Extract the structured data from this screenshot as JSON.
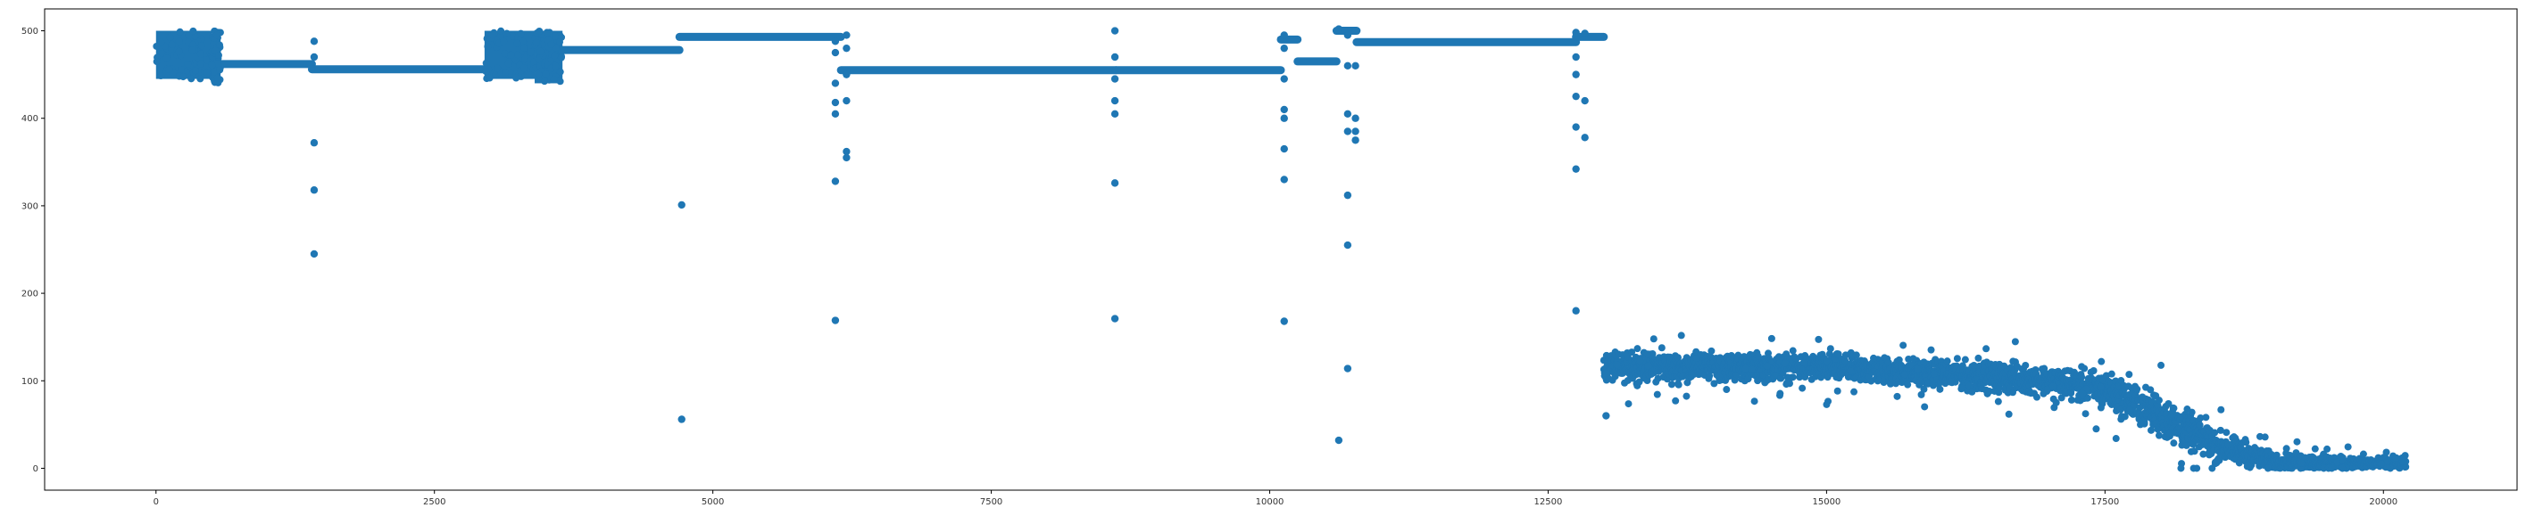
{
  "chart_data": {
    "type": "scatter",
    "title": "",
    "xlabel": "",
    "ylabel": "",
    "xlim": [
      -1000,
      21200
    ],
    "ylim": [
      -25,
      525
    ],
    "x_ticks": [
      0,
      2500,
      5000,
      7500,
      10000,
      12500,
      15000,
      17500,
      20000
    ],
    "y_ticks": [
      0,
      100,
      200,
      300,
      400,
      500
    ],
    "grid": false,
    "legend": "none",
    "series": [
      {
        "color": "#1f77b4",
        "plateaus": [
          {
            "x": [
              580,
              1400
            ],
            "y": 462
          },
          {
            "x": [
              1400,
              2980
            ],
            "y": 456
          },
          {
            "x": [
              3650,
              4700
            ],
            "y": 478
          },
          {
            "x": [
              4700,
              6150
            ],
            "y": 493
          },
          {
            "x": [
              6150,
              8620
            ],
            "y": 455
          },
          {
            "x": [
              8620,
              10100
            ],
            "y": 455
          },
          {
            "x": [
              10100,
              10250
            ],
            "y": 490
          },
          {
            "x": [
              10250,
              10600
            ],
            "y": 465
          },
          {
            "x": [
              10600,
              10780
            ],
            "y": 500
          },
          {
            "x": [
              10780,
              12750
            ],
            "y": 487
          },
          {
            "x": [
              12750,
              13000
            ],
            "y": 493
          }
        ],
        "dense_bands": [
          {
            "x": [
              0,
              500
            ],
            "y": [
              445,
              500
            ]
          },
          {
            "x": [
              500,
              580
            ],
            "y": [
              440,
              500
            ]
          },
          {
            "x": [
              2950,
              3400
            ],
            "y": [
              445,
              500
            ]
          },
          {
            "x": [
              3400,
              3650
            ],
            "y": [
              440,
              500
            ]
          }
        ],
        "outliers": [
          [
            1420,
            488
          ],
          [
            1420,
            470
          ],
          [
            1420,
            372
          ],
          [
            1420,
            318
          ],
          [
            1420,
            245
          ],
          [
            4720,
            301
          ],
          [
            4720,
            56
          ],
          [
            6100,
            488
          ],
          [
            6100,
            475
          ],
          [
            6100,
            440
          ],
          [
            6100,
            418
          ],
          [
            6100,
            405
          ],
          [
            6100,
            328
          ],
          [
            6100,
            169
          ],
          [
            6200,
            495
          ],
          [
            6200,
            480
          ],
          [
            6200,
            450
          ],
          [
            6200,
            420
          ],
          [
            6200,
            362
          ],
          [
            6200,
            355
          ],
          [
            8610,
            500
          ],
          [
            8610,
            470
          ],
          [
            8610,
            445
          ],
          [
            8610,
            420
          ],
          [
            8610,
            405
          ],
          [
            8610,
            326
          ],
          [
            8610,
            171
          ],
          [
            10130,
            495
          ],
          [
            10130,
            480
          ],
          [
            10130,
            445
          ],
          [
            10130,
            410
          ],
          [
            10130,
            400
          ],
          [
            10130,
            365
          ],
          [
            10130,
            330
          ],
          [
            10130,
            168
          ],
          [
            10620,
            502
          ],
          [
            10620,
            32
          ],
          [
            10700,
            495
          ],
          [
            10700,
            460
          ],
          [
            10700,
            405
          ],
          [
            10700,
            385
          ],
          [
            10700,
            312
          ],
          [
            10700,
            255
          ],
          [
            10700,
            114
          ],
          [
            10770,
            500
          ],
          [
            10770,
            460
          ],
          [
            10770,
            400
          ],
          [
            10770,
            385
          ],
          [
            10770,
            375
          ],
          [
            12750,
            498
          ],
          [
            12750,
            470
          ],
          [
            12750,
            450
          ],
          [
            12750,
            425
          ],
          [
            12750,
            390
          ],
          [
            12750,
            342
          ],
          [
            12750,
            180
          ],
          [
            12830,
            497
          ],
          [
            12830,
            420
          ],
          [
            12830,
            378
          ],
          [
            13020,
            60
          ]
        ],
        "trend_cloud": [
          {
            "x": 13000,
            "center": 115,
            "spread": 17
          },
          {
            "x": 14000,
            "center": 116,
            "spread": 17
          },
          {
            "x": 15000,
            "center": 115,
            "spread": 17
          },
          {
            "x": 16000,
            "center": 108,
            "spread": 17
          },
          {
            "x": 17000,
            "center": 100,
            "spread": 18
          },
          {
            "x": 17500,
            "center": 90,
            "spread": 22
          },
          {
            "x": 18000,
            "center": 60,
            "spread": 26
          },
          {
            "x": 18500,
            "center": 25,
            "spread": 20
          },
          {
            "x": 19000,
            "center": 8,
            "spread": 10
          },
          {
            "x": 20200,
            "center": 5,
            "spread": 6
          }
        ]
      }
    ]
  }
}
